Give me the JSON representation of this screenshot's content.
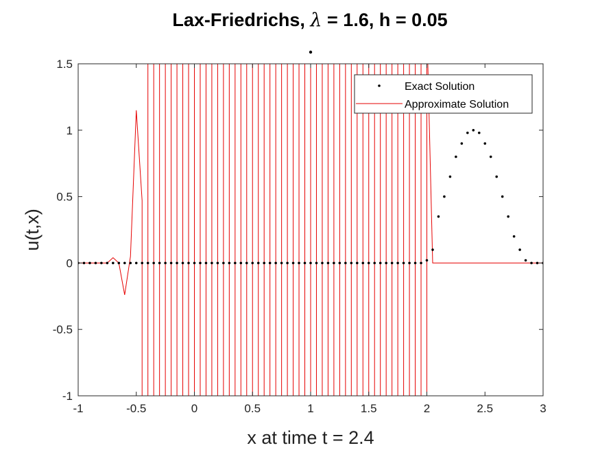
{
  "chart_data": {
    "type": "line",
    "title_prefix": "Lax-Friedrichs, ",
    "title_symbol": "λ",
    "title_suffix": " = 1.6, h = 0.05",
    "xlabel": "x at time t = 2.4",
    "ylabel": "u(t,x)",
    "xlim": [
      -1,
      3
    ],
    "ylim": [
      -1,
      1.5
    ],
    "xticks": [
      "-1",
      "-0.5",
      "0",
      "0.5",
      "1",
      "1.5",
      "2",
      "2.5",
      "3"
    ],
    "yticks": [
      "-1",
      "-0.5",
      "0",
      "0.5",
      "1",
      "1.5"
    ],
    "grid": false,
    "legend_position": "top-right",
    "colors": {
      "exact": "#000000",
      "approx": "#e60000",
      "axes": "#262626"
    },
    "series": [
      {
        "name": "Exact Solution",
        "style": "dots",
        "x": [
          -1,
          -0.95,
          -0.9,
          -0.85,
          -0.8,
          -0.75,
          -0.7,
          -0.65,
          -0.6,
          -0.55,
          -0.5,
          -0.45,
          -0.4,
          -0.35,
          -0.3,
          -0.25,
          -0.2,
          -0.15,
          -0.1,
          -0.05,
          0,
          0.05,
          0.1,
          0.15,
          0.2,
          0.25,
          0.3,
          0.35,
          0.4,
          0.45,
          0.5,
          0.55,
          0.6,
          0.65,
          0.7,
          0.75,
          0.8,
          0.85,
          0.9,
          0.95,
          1,
          1.05,
          1.1,
          1.15,
          1.2,
          1.25,
          1.3,
          1.35,
          1.4,
          1.45,
          1.5,
          1.55,
          1.6,
          1.65,
          1.7,
          1.75,
          1.8,
          1.85,
          1.9,
          1.95,
          2,
          2.05,
          2.1,
          2.15,
          2.2,
          2.25,
          2.3,
          2.35,
          2.4,
          2.45,
          2.5,
          2.55,
          2.6,
          2.65,
          2.7,
          2.75,
          2.8,
          2.85,
          2.9,
          2.95,
          3
        ],
        "y": [
          0,
          0,
          0,
          0,
          0,
          0,
          0,
          0,
          0,
          0,
          0,
          0,
          0,
          0,
          0,
          0,
          0,
          0,
          0,
          0,
          0,
          0,
          0,
          0,
          0,
          0,
          0,
          0,
          0,
          0,
          0,
          0,
          0,
          0,
          0,
          0,
          0,
          0,
          0,
          0,
          0,
          0,
          0,
          0,
          0,
          0,
          0,
          0,
          0,
          0,
          0,
          0,
          0,
          0,
          0,
          0,
          0,
          0,
          0,
          0,
          0.02,
          0.1,
          0.35,
          0.5,
          0.65,
          0.8,
          0.9,
          0.98,
          1.0,
          0.98,
          0.9,
          0.8,
          0.65,
          0.5,
          0.35,
          0.2,
          0.1,
          0.02,
          0,
          0,
          0
        ]
      },
      {
        "name": "Approximate Solution",
        "style": "line",
        "x": [
          -1,
          -0.95,
          -0.9,
          -0.85,
          -0.8,
          -0.75,
          -0.7,
          -0.65,
          -0.6,
          -0.55,
          -0.5,
          -0.45,
          -0.45,
          -0.4,
          -0.4,
          -0.35,
          -0.35,
          -0.3,
          -0.3,
          -0.25,
          -0.25,
          -0.2,
          -0.2,
          -0.15,
          -0.15,
          -0.1,
          -0.1,
          -0.05,
          -0.05,
          0,
          0,
          0.05,
          0.05,
          0.1,
          0.1,
          0.15,
          0.15,
          0.2,
          0.2,
          0.25,
          0.25,
          0.3,
          0.3,
          0.35,
          0.35,
          0.4,
          0.4,
          0.45,
          0.45,
          0.5,
          0.5,
          0.55,
          0.55,
          0.6,
          0.6,
          0.65,
          0.65,
          0.7,
          0.7,
          0.75,
          0.75,
          0.8,
          0.8,
          0.85,
          0.85,
          0.9,
          0.9,
          0.95,
          0.95,
          1,
          1,
          1.05,
          1.05,
          1.1,
          1.1,
          1.15,
          1.15,
          1.2,
          1.2,
          1.25,
          1.25,
          1.3,
          1.3,
          1.35,
          1.35,
          1.4,
          1.4,
          1.45,
          1.45,
          1.5,
          1.5,
          1.55,
          1.55,
          1.6,
          1.6,
          1.65,
          1.65,
          1.7,
          1.7,
          1.75,
          1.75,
          1.8,
          1.8,
          1.85,
          1.85,
          1.9,
          1.9,
          1.95,
          1.95,
          2,
          2,
          2.05,
          2.1,
          2.15,
          2.2,
          2.25,
          2.3,
          2.35,
          2.4,
          2.45,
          2.5,
          2.55,
          2.6,
          2.65,
          2.7,
          2.75,
          2.8,
          2.85,
          2.9,
          2.95,
          3
        ],
        "y": [
          0,
          0,
          0,
          0,
          0,
          0,
          0.04,
          0,
          -0.24,
          0.05,
          1.15,
          0.47,
          -1.3,
          -1.3,
          1.8,
          1.8,
          -1.3,
          -1.3,
          1.8,
          1.8,
          -1.3,
          -1.3,
          1.8,
          1.8,
          -1.3,
          -1.3,
          1.8,
          1.8,
          -1.3,
          -1.3,
          1.8,
          1.8,
          -1.3,
          -1.3,
          1.8,
          1.8,
          -1.3,
          -1.3,
          1.8,
          1.8,
          -1.3,
          -1.3,
          1.8,
          1.8,
          -1.3,
          -1.3,
          1.8,
          1.8,
          -1.3,
          -1.3,
          1.8,
          1.8,
          -1.3,
          -1.3,
          1.8,
          1.8,
          -1.3,
          -1.3,
          1.8,
          1.8,
          -1.3,
          -1.3,
          1.8,
          1.8,
          -1.3,
          -1.3,
          1.8,
          1.8,
          -1.3,
          -1.3,
          1.8,
          1.8,
          -1.3,
          -1.3,
          1.8,
          1.8,
          -1.3,
          -1.3,
          1.8,
          1.8,
          -1.3,
          -1.3,
          1.8,
          1.8,
          -1.3,
          -1.3,
          1.8,
          1.8,
          -1.3,
          -1.3,
          1.8,
          1.8,
          -1.3,
          -1.3,
          1.8,
          1.8,
          -1.3,
          -1.3,
          1.8,
          1.8,
          -1.3,
          -1.3,
          1.8,
          1.8,
          -1.3,
          -1.3,
          1.8,
          1.8,
          -1.3,
          -1.3,
          1.8,
          0,
          0,
          0,
          0,
          0,
          0,
          0,
          0,
          0,
          0,
          0,
          0,
          0,
          0,
          0,
          0,
          0,
          0,
          0,
          0
        ]
      }
    ]
  }
}
